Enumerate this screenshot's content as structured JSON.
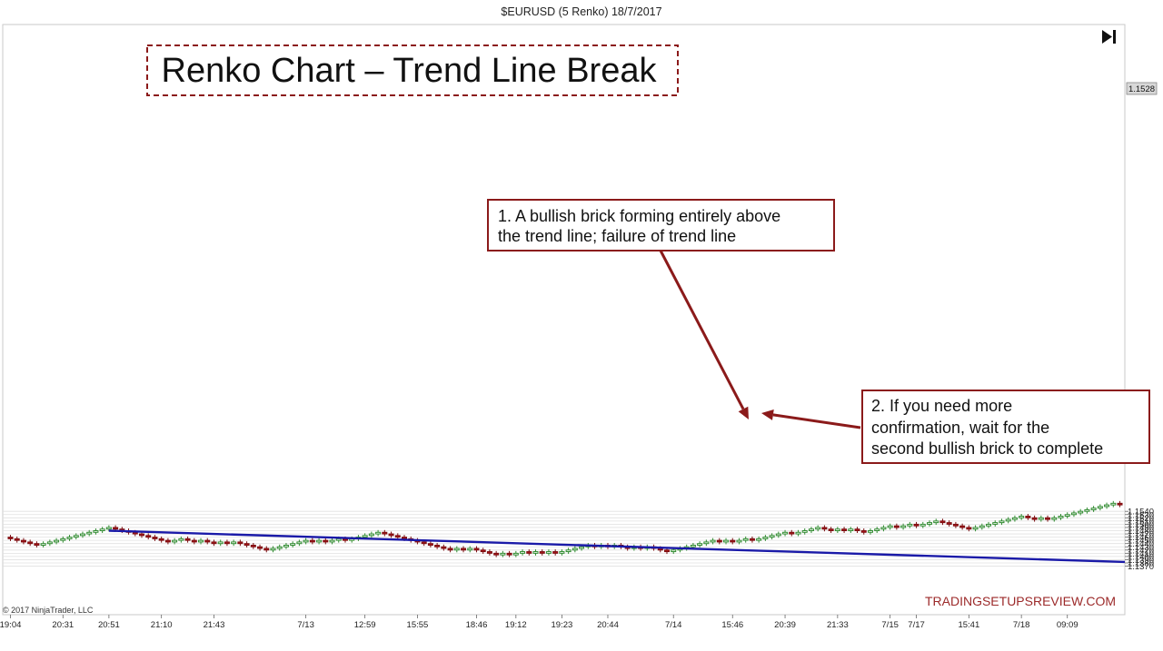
{
  "header": {
    "title": "$EURUSD (5 Renko)  18/7/2017",
    "copyright": "© 2017 NinjaTrader, LLC",
    "watermark": "TRADINGSETUPSREVIEW.COM",
    "skip_icon": "skip-to-end-icon"
  },
  "chart_data": {
    "type": "renko",
    "title": "Renko Chart – Trend Line Break",
    "brick_size": 0.0005,
    "ylim": [
      1.1365,
      1.155
    ],
    "y_ticks": [
      1.137,
      1.138,
      1.139,
      1.14,
      1.141,
      1.142,
      1.143,
      1.144,
      1.145,
      1.146,
      1.147,
      1.148,
      1.149,
      1.15,
      1.151,
      1.152,
      1.153,
      1.154
    ],
    "y_tick_labels": [
      "1.1370",
      "1.1380",
      "1.1390",
      "1.1400",
      "1.1410",
      "1.1420",
      "1.1430",
      "1.1440",
      "1.1450",
      "1.1460",
      "1.1470",
      "1.1480",
      "1.1490",
      "1.1500",
      "1.1510",
      "1.1520",
      "1.1530",
      "1.1540"
    ],
    "current_price_label": "1.1528",
    "x_labels": [
      "19:04",
      "20:31",
      "20:51",
      "21:10",
      "21:43",
      "7/13",
      "12:59",
      "15:55",
      "18:46",
      "19:12",
      "19:23",
      "20:44",
      "7/14",
      "15:46",
      "20:39",
      "21:33",
      "7/15",
      "7/17",
      "15:41",
      "7/18",
      "09:09"
    ],
    "x_label_index": [
      0,
      8,
      15,
      23,
      31,
      45,
      54,
      62,
      71,
      77,
      84,
      91,
      101,
      110,
      118,
      126,
      134,
      138,
      146,
      154,
      161
    ],
    "start_close": 1.146,
    "bricks": [
      -1,
      -1,
      -1,
      -1,
      -1,
      1,
      1,
      1,
      1,
      1,
      1,
      1,
      1,
      1,
      1,
      1,
      -1,
      -1,
      -1,
      -1,
      -1,
      -1,
      -1,
      -1,
      -1,
      1,
      1,
      -1,
      -1,
      1,
      -1,
      -1,
      1,
      -1,
      1,
      -1,
      -1,
      -1,
      -1,
      -1,
      1,
      1,
      1,
      1,
      1,
      1,
      -1,
      1,
      -1,
      1,
      1,
      -1,
      1,
      1,
      1,
      1,
      1,
      -1,
      -1,
      -1,
      -1,
      -1,
      -1,
      -1,
      -1,
      -1,
      -1,
      -1,
      1,
      -1,
      1,
      -1,
      -1,
      -1,
      -1,
      1,
      -1,
      1,
      1,
      -1,
      1,
      -1,
      1,
      -1,
      1,
      1,
      1,
      1,
      1,
      -1,
      1,
      -1,
      1,
      -1,
      -1,
      1,
      -1,
      1,
      -1,
      -1,
      -1,
      1,
      1,
      1,
      1,
      1,
      1,
      1,
      -1,
      1,
      -1,
      1,
      1,
      -1,
      1,
      1,
      1,
      1,
      1,
      -1,
      1,
      1,
      1,
      1,
      -1,
      -1,
      1,
      -1,
      1,
      -1,
      -1,
      1,
      1,
      1,
      1,
      -1,
      1,
      1,
      -1,
      1,
      1,
      1,
      -1,
      -1,
      -1,
      -1,
      -1,
      1,
      1,
      1,
      1,
      1,
      1,
      1,
      1,
      -1,
      -1,
      1,
      -1,
      1,
      1,
      1,
      1,
      1,
      1,
      1,
      1,
      1,
      1,
      -1
    ],
    "trend_line": {
      "start": {
        "brick_index": 15,
        "price": 1.148
      },
      "end_price_at_right_edge": 1.1383
    },
    "annotations": [
      {
        "id": "annotation-1",
        "text": [
          "1. A bullish brick forming entirely above",
          "the trend line; failure of trend line"
        ]
      },
      {
        "id": "annotation-2",
        "text": [
          "2. If you need more",
          "confirmation, wait for the",
          "second bullish brick to complete"
        ]
      }
    ],
    "colors": {
      "up": "#ffffff",
      "up_stroke": "#2f8a2f",
      "down": "#b0161a",
      "down_stroke": "#7a0d10",
      "trend_line": "#1a1aa8",
      "annotation": "#8b1a1a",
      "watermark": "#9c2a2a",
      "grid": "#e0e0e0"
    }
  }
}
